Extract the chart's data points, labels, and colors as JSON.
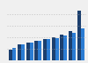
{
  "groups": 9,
  "series1_values": [
    1.8,
    2.8,
    3.1,
    3.4,
    3.7,
    4.0,
    4.4,
    5.0,
    8.5
  ],
  "series2_values": [
    2.2,
    2.7,
    3.0,
    3.3,
    3.6,
    3.9,
    4.3,
    4.8,
    5.5
  ],
  "color1": "#1c3f6e",
  "color2": "#2b7cd3",
  "background_color": "#f0f0f0",
  "ylim": [
    0,
    9.5
  ],
  "bar_width": 0.4,
  "figsize": [
    1.0,
    0.71
  ],
  "dpi": 100
}
